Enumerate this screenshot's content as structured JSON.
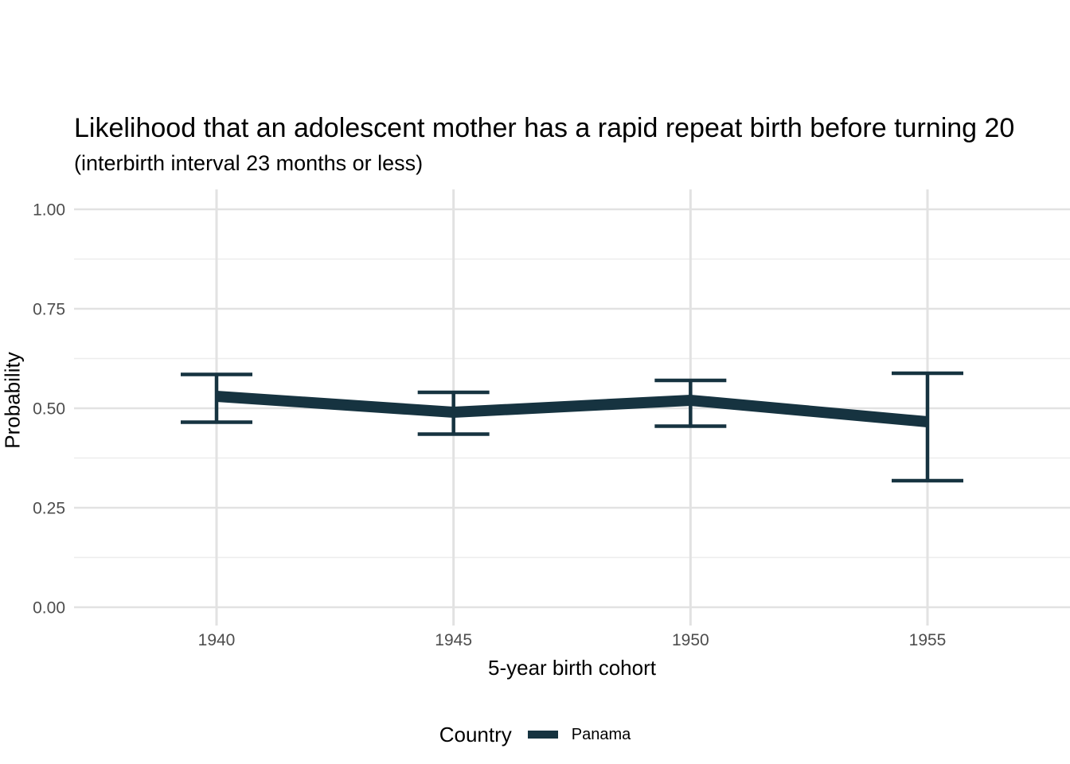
{
  "chart_data": {
    "type": "line",
    "title": "Likelihood that an adolescent mother has a rapid repeat birth before turning 20",
    "subtitle": "(interbirth interval 23 months or less)",
    "xlabel": "5-year birth cohort",
    "ylabel": "Probability",
    "x_tick_labels": [
      "1940",
      "1945",
      "1950",
      "1955"
    ],
    "x_tick_values": [
      1940,
      1945,
      1950,
      1955
    ],
    "y_tick_labels": [
      "0.00",
      "0.25",
      "0.50",
      "0.75",
      "1.00"
    ],
    "y_tick_values": [
      0,
      0.25,
      0.5,
      0.75,
      1
    ],
    "y_minor_tick_values": [
      0.125,
      0.375,
      0.625,
      0.875
    ],
    "ylim": [
      0,
      1
    ],
    "grid": "horizontal major+minor, vertical major only",
    "legend_position": "bottom",
    "legend_title": "Country",
    "series": [
      {
        "name": "Panama",
        "color": "#163340",
        "x": [
          1940,
          1945,
          1950,
          1955
        ],
        "y": [
          0.53,
          0.49,
          0.52,
          0.466
        ],
        "ci_low": [
          0.465,
          0.435,
          0.455,
          0.318
        ],
        "ci_high": [
          0.585,
          0.54,
          0.57,
          0.588
        ]
      }
    ]
  },
  "style": {
    "background": "#ffffff",
    "grid_major_color": "#e2e2e2",
    "grid_minor_color": "#ededed",
    "tick_label_color": "#4d4d4d",
    "text_color": "#000000"
  }
}
